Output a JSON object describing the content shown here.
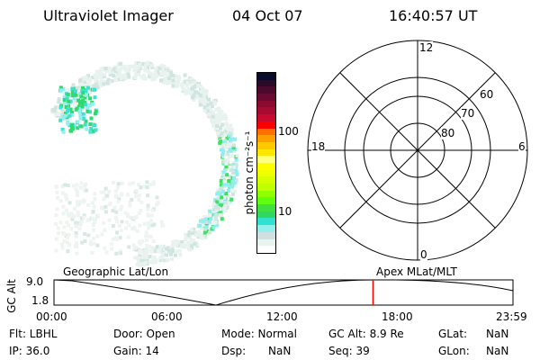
{
  "header": {
    "instrument": "Ultraviolet Imager",
    "date": "04 Oct 07",
    "time": "16:40:57 UT"
  },
  "colorbar": {
    "label": "photon cm⁻²s⁻¹",
    "ticks": [
      "100",
      "10"
    ],
    "colors": [
      "#0a0a2a",
      "#2a0a28",
      "#4a0a2e",
      "#6a0a30",
      "#8a0a30",
      "#a80a30",
      "#c80a30",
      "#ff0000",
      "#ff7000",
      "#ffa000",
      "#ffc800",
      "#ffe600",
      "#ffff80",
      "#ffff00",
      "#f0ff00",
      "#d8ff00",
      "#c0ff00",
      "#90ff00",
      "#60ff10",
      "#40e040",
      "#30d860",
      "#30e0d0",
      "#90f0f0",
      "#d0e0e0",
      "#e8f4ee",
      "#ffffff"
    ]
  },
  "polar": {
    "top": "12",
    "left": "18",
    "right": "6",
    "bottom": "0",
    "rings": [
      "60",
      "70",
      "80"
    ]
  },
  "timeline": {
    "left_label": "Geographic Lat/Lon",
    "right_label": "Apex  MLat/MLT",
    "ylabel": "GC Alt",
    "ymax": "9.0",
    "ymin": "1.8",
    "xticks": [
      "00:00",
      "06:00",
      "12:00",
      "18:00",
      "23:59"
    ],
    "current_time_fraction": 0.695
  },
  "status": {
    "flt": "Flt: LBHL",
    "ip": "IP: 36.0",
    "door": "Door: Open",
    "gain": "Gain: 14",
    "mode": "Mode: Normal",
    "dsp_label": "Dsp:",
    "dsp_value": "NaN",
    "gcalt": "GC Alt: 8.9 Re",
    "seq": "Seq: 39",
    "glat_label": "GLat:",
    "glat_value": "NaN",
    "glon_label": "GLon:",
    "glon_value": "NaN"
  }
}
